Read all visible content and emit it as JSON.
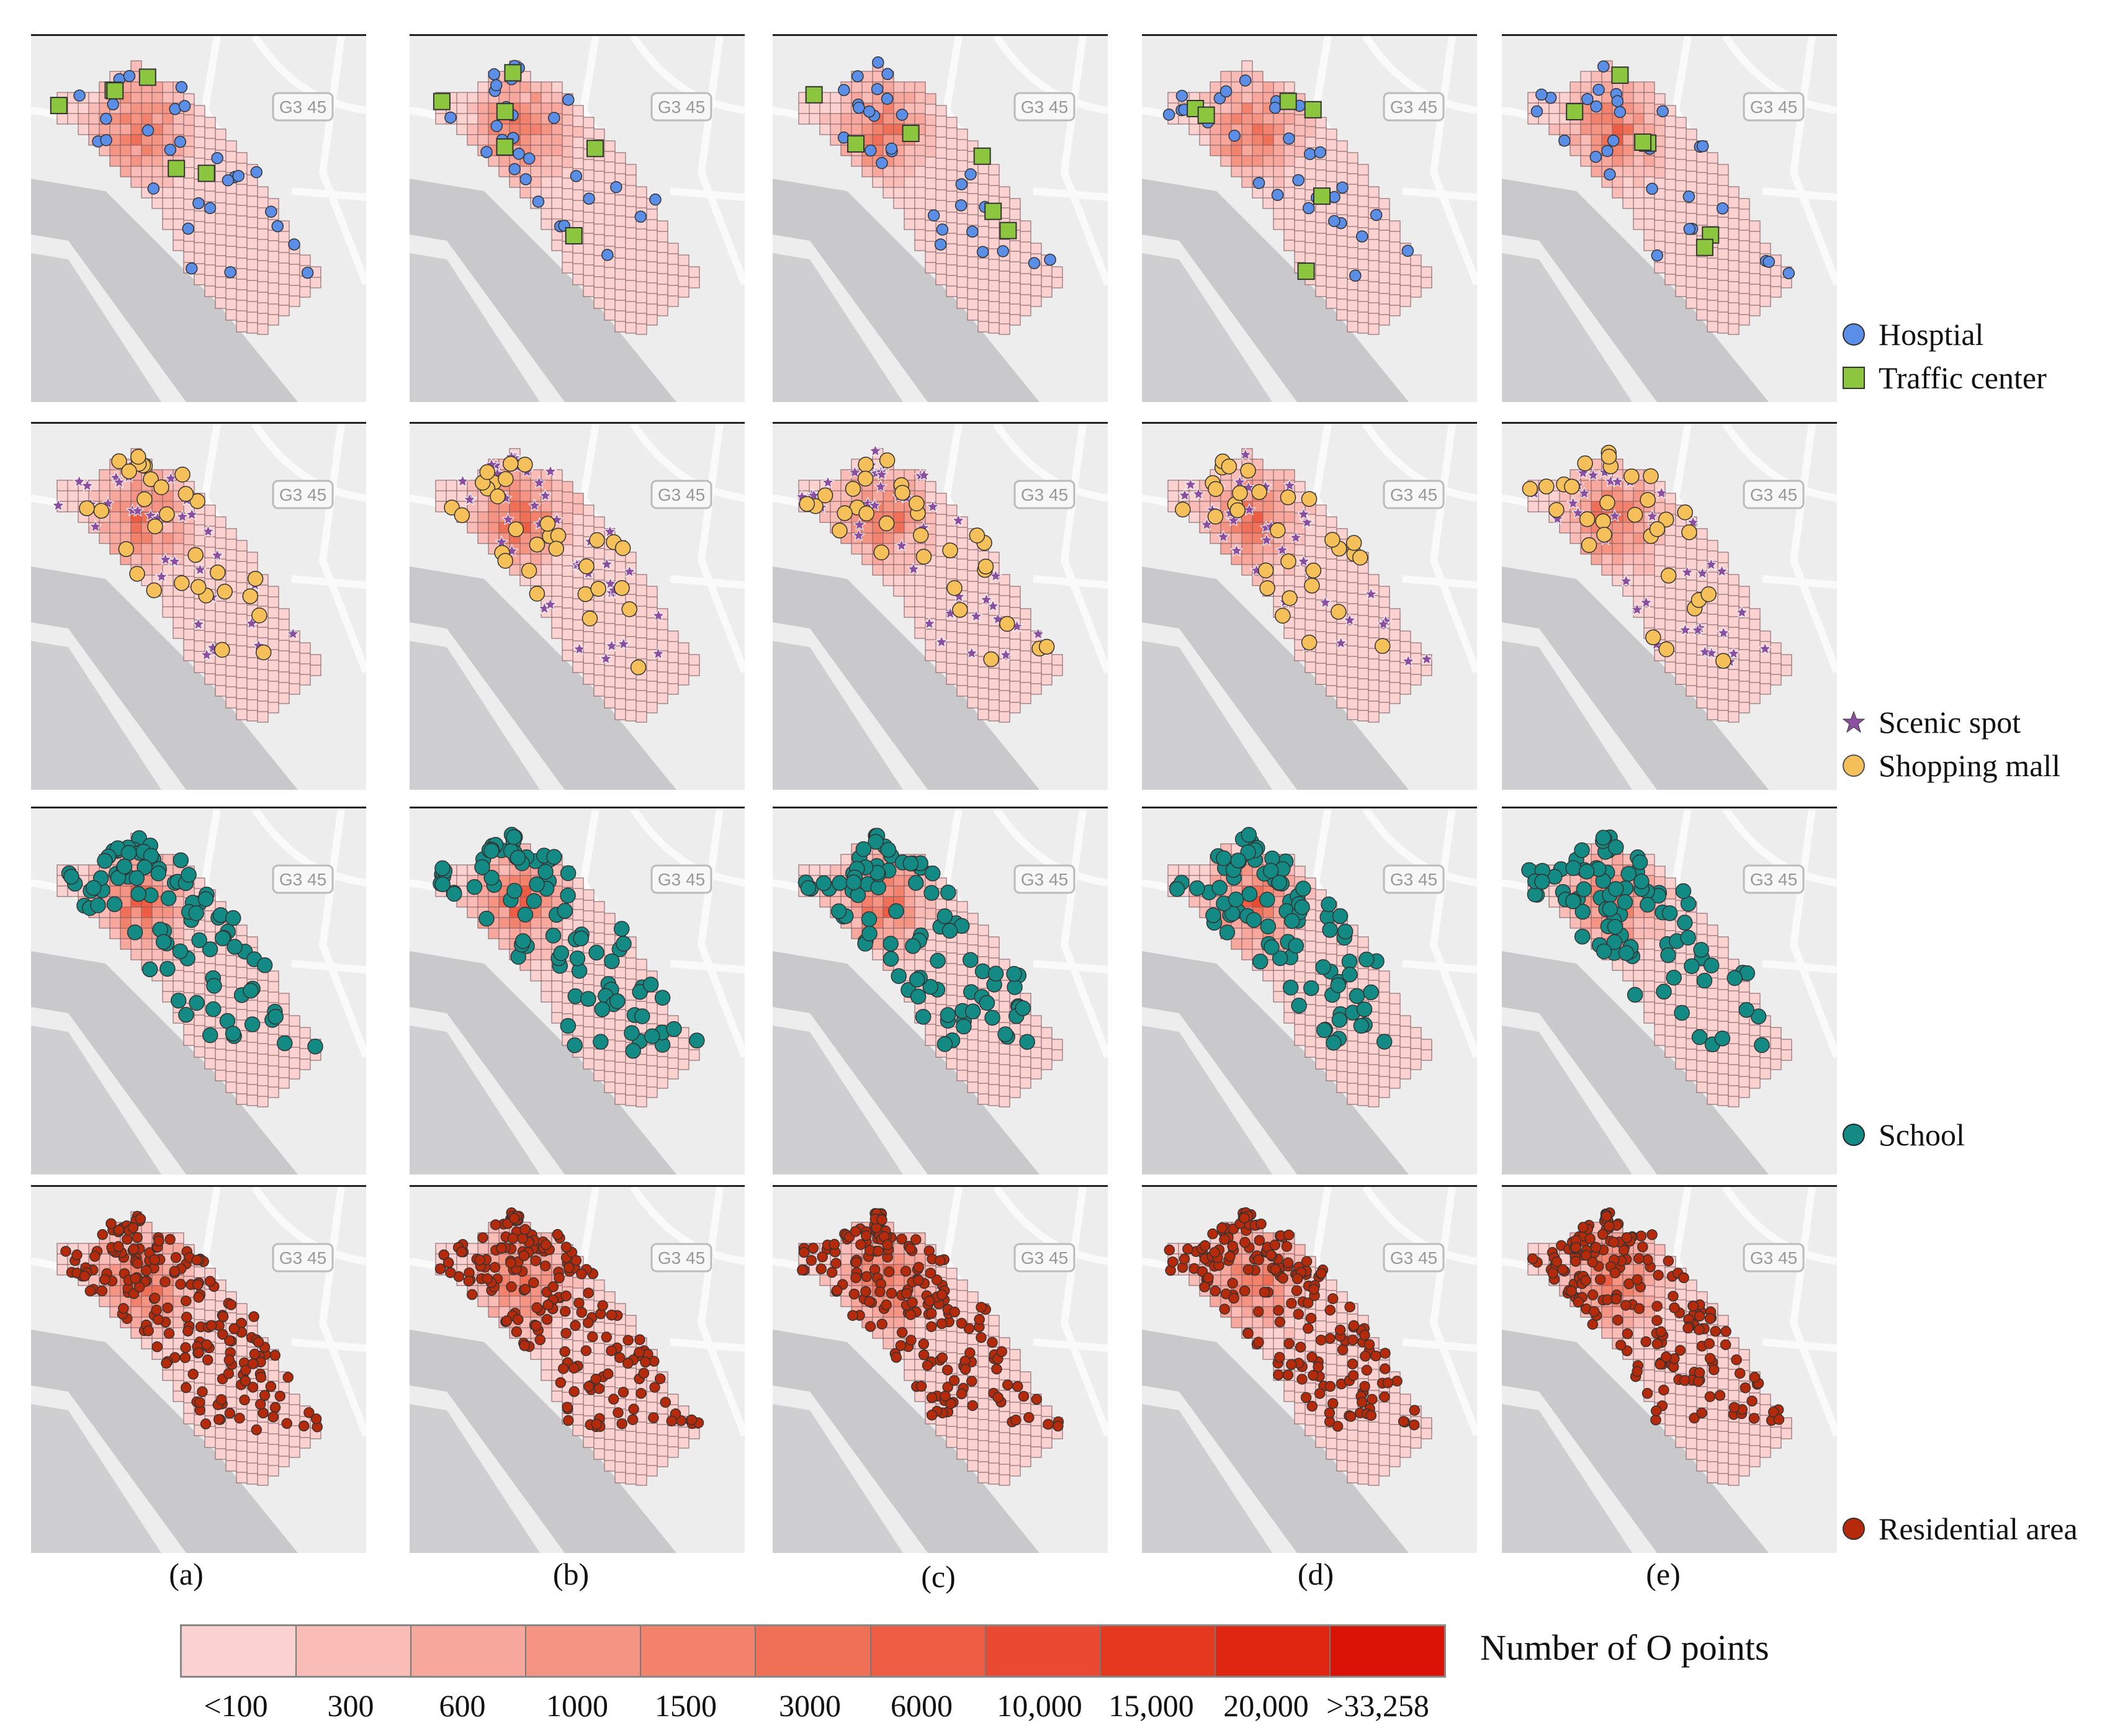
{
  "columns": [
    {
      "label": "(a)"
    },
    {
      "label": "(b)"
    },
    {
      "label": "(c)"
    },
    {
      "label": "(d)"
    },
    {
      "label": "(e)"
    }
  ],
  "rows": [
    {
      "poi": [
        "hospital",
        "traffic-center"
      ]
    },
    {
      "poi": [
        "scenic-spot",
        "shopping-mall"
      ]
    },
    {
      "poi": [
        "school"
      ]
    },
    {
      "poi": [
        "residential-area"
      ]
    }
  ],
  "map_labels": {
    "road_tag": "G3 45"
  },
  "legend": {
    "hospital": {
      "label": "Hosptial",
      "color": "#5b8ee6",
      "icon": "circle-icon"
    },
    "traffic_center": {
      "label": "Traffic center",
      "color": "#8cc63f",
      "icon": "square-icon"
    },
    "scenic_spot": {
      "label": "Scenic spot",
      "color": "#8a4f9e",
      "icon": "star-icon"
    },
    "shopping_mall": {
      "label": "Shopping mall",
      "color": "#f5c05a",
      "icon": "circle-icon"
    },
    "school": {
      "label": "School",
      "color": "#138a84",
      "icon": "circle-icon"
    },
    "residential_area": {
      "label": "Residential area",
      "color": "#b52a0a",
      "icon": "circle-icon"
    }
  },
  "colorbar": {
    "title": "Number of O points",
    "ticks": [
      "<100",
      "300",
      "600",
      "1000",
      "1500",
      "3000",
      "6000",
      "10,000",
      "15,000",
      "20,000",
      ">33,258"
    ],
    "colors": [
      "#fcd2d0",
      "#f9bcb6",
      "#f7a79c",
      "#f59483",
      "#f3826c",
      "#f06f57",
      "#ed5c43",
      "#e94a31",
      "#e4391f",
      "#de2611",
      "#d91407"
    ]
  }
}
